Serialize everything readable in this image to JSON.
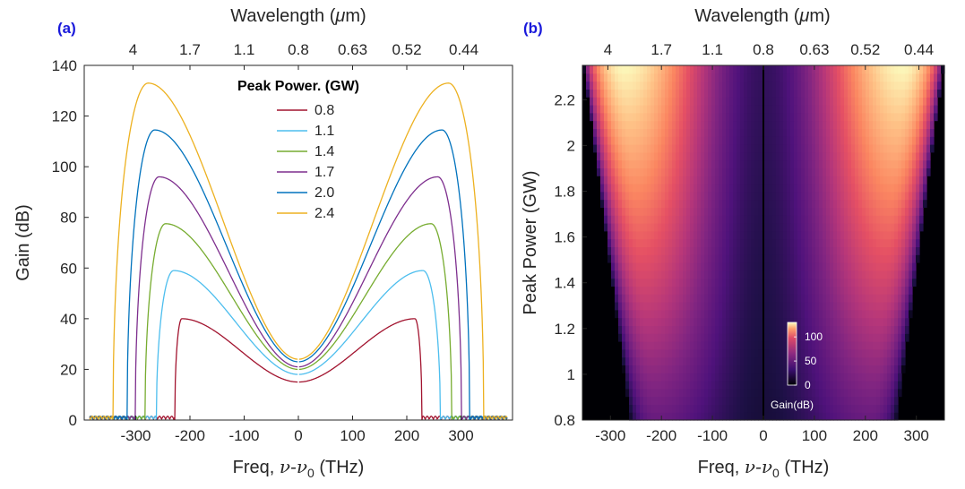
{
  "chart_data": [
    {
      "panel": "(a)",
      "type": "line",
      "xlabel": "Freq, ν-ν0 (THz)",
      "xlabel_main": "Freq, ",
      "xlabel_nu": "ν-ν",
      "xlabel_sub": "0",
      "xlabel_unit": " (THz)",
      "ylabel": "Gain (dB)",
      "top_xlabel": "Wavelength (μm)",
      "top_xlabel_prefix": "Wavelength (",
      "top_xlabel_mu": "μ",
      "top_xlabel_suffix": "m)",
      "xlim": [
        -395,
        395
      ],
      "ylim": [
        0,
        140
      ],
      "xticks": [
        -300,
        -200,
        -100,
        0,
        100,
        200,
        300
      ],
      "xtick_labels": [
        "-300",
        "-200",
        "-100",
        "0",
        "100",
        "200",
        "300"
      ],
      "yticks": [
        0,
        20,
        40,
        60,
        80,
        100,
        120,
        140
      ],
      "ytick_labels": [
        "0",
        "20",
        "40",
        "60",
        "80",
        "100",
        "120",
        "140"
      ],
      "top_ticks": [
        -305,
        -200,
        -100,
        0,
        100,
        200,
        305
      ],
      "top_tick_labels": [
        "4",
        "1.7",
        "1.1",
        "0.8",
        "0.63",
        "0.52",
        "0.44"
      ],
      "legend_title": "Peak Power. (GW)",
      "legend_position": "top-center",
      "series": [
        {
          "name": "0.8",
          "color": "#A2142F",
          "center_gain": 15,
          "peak_gain": 40,
          "peak_freq": 215,
          "edge_freq": 228
        },
        {
          "name": "1.1",
          "color": "#4DBEEE",
          "center_gain": 18,
          "peak_gain": 59,
          "peak_freq": 230,
          "edge_freq": 262
        },
        {
          "name": "1.4",
          "color": "#77AC30",
          "center_gain": 20,
          "peak_gain": 77.5,
          "peak_freq": 245,
          "edge_freq": 283
        },
        {
          "name": "1.7",
          "color": "#7E2F8E",
          "center_gain": 21,
          "peak_gain": 96,
          "peak_freq": 257,
          "edge_freq": 301
        },
        {
          "name": "2.0",
          "color": "#0072BD",
          "center_gain": 23,
          "peak_gain": 114.5,
          "peak_freq": 265,
          "edge_freq": 316
        },
        {
          "name": "2.4",
          "color": "#EDB120",
          "center_gain": 24,
          "peak_gain": 133,
          "peak_freq": 277,
          "edge_freq": 342
        }
      ]
    },
    {
      "panel": "(b)",
      "type": "heatmap",
      "xlabel_main": "Freq, ",
      "xlabel_nu": "ν-ν",
      "xlabel_sub": "0",
      "xlabel_unit": " (THz)",
      "ylabel": "Peak Power (GW)",
      "top_xlabel_prefix": "Wavelength (",
      "top_xlabel_mu": "μ",
      "top_xlabel_suffix": "m)",
      "xlim": [
        -355,
        355
      ],
      "ylim": [
        0.8,
        2.35
      ],
      "xticks": [
        -300,
        -200,
        -100,
        0,
        100,
        200,
        300
      ],
      "xtick_labels": [
        "-300",
        "-200",
        "-100",
        "0",
        "100",
        "200",
        "300"
      ],
      "yticks": [
        0.8,
        1,
        1.2,
        1.4,
        1.6,
        1.8,
        2,
        2.2
      ],
      "ytick_labels": [
        "0.8",
        "1",
        "1.2",
        "1.4",
        "1.6",
        "1.8",
        "2",
        "2.2"
      ],
      "top_ticks": [
        -305,
        -200,
        -100,
        0,
        100,
        200,
        305
      ],
      "top_tick_labels": [
        "4",
        "1.7",
        "1.1",
        "0.8",
        "0.63",
        "0.52",
        "0.44"
      ],
      "colorbar": {
        "label": "Gain(dB)",
        "ticks": [
          0,
          50,
          100
        ],
        "tick_labels": [
          "0",
          "50",
          "100"
        ],
        "range": [
          0,
          130
        ],
        "colormap": "magma"
      }
    }
  ]
}
